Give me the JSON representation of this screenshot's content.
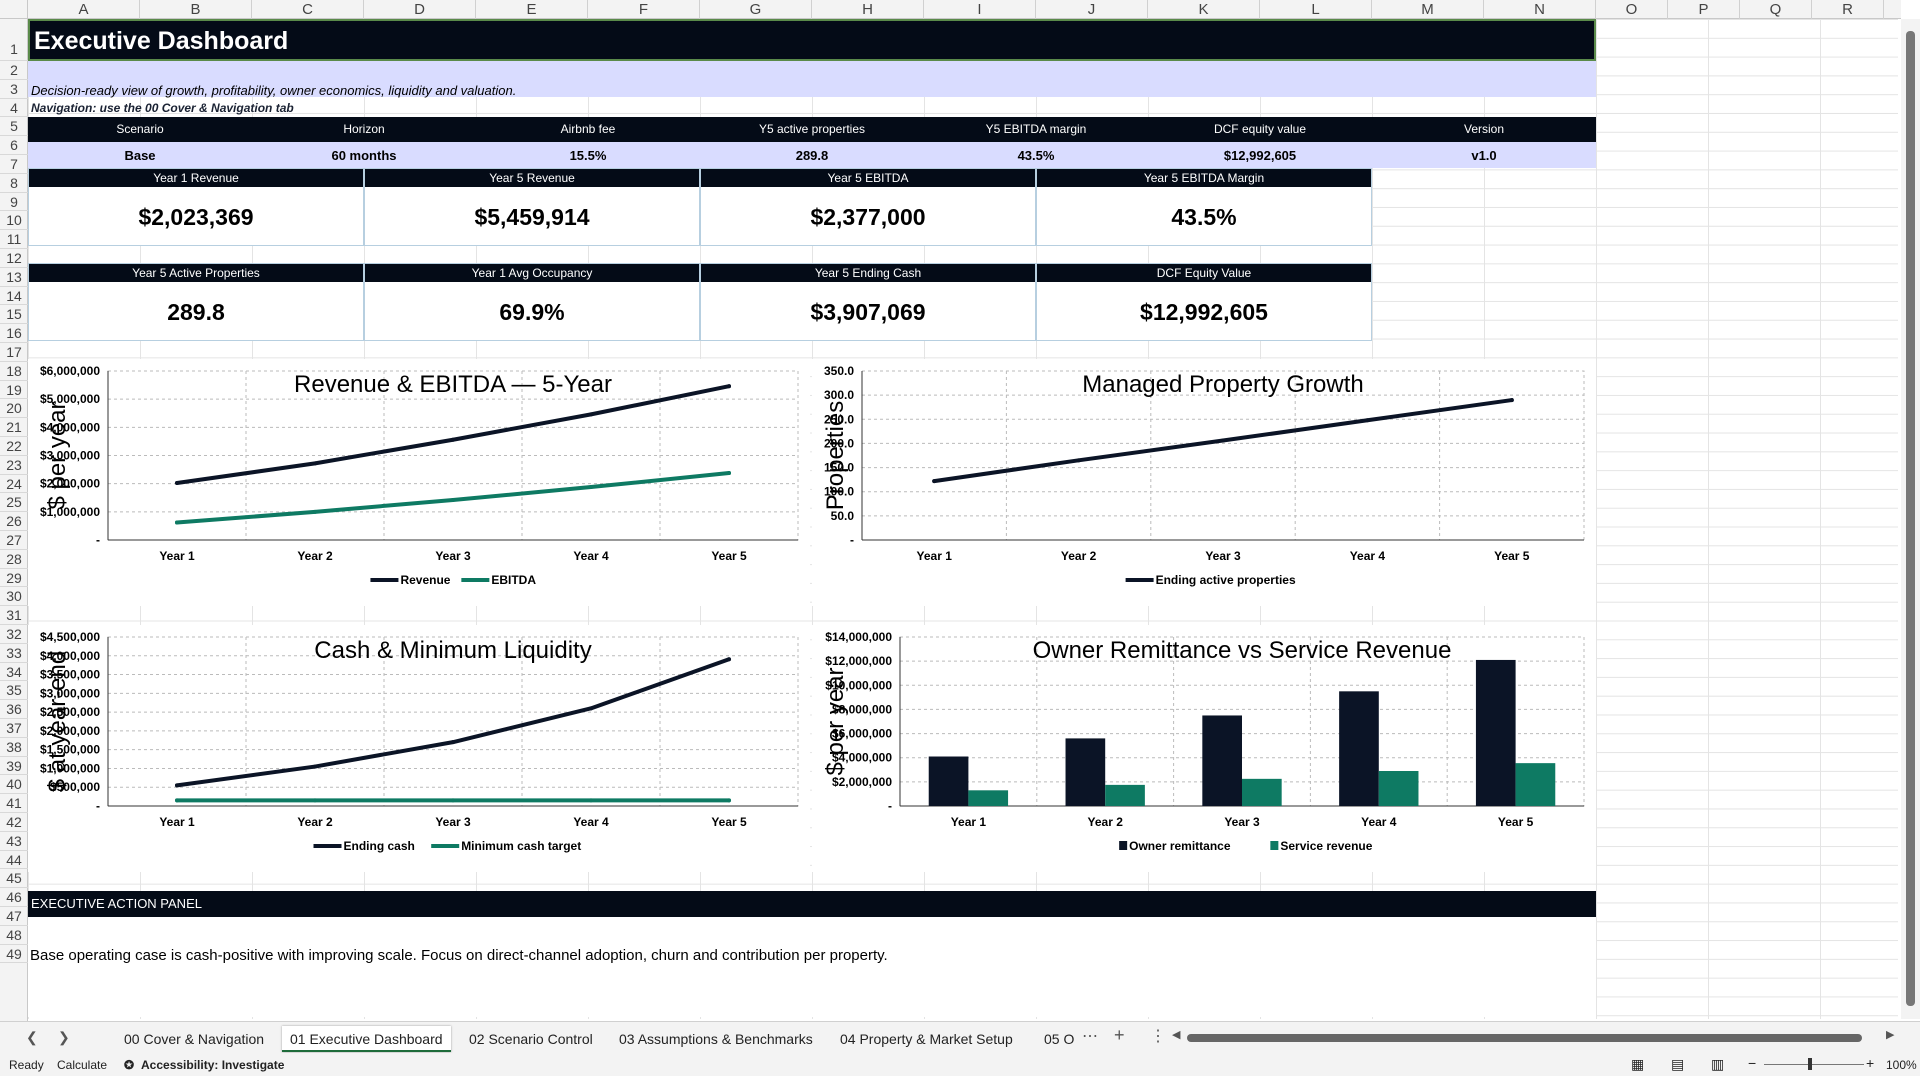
{
  "columns": [
    "A",
    "B",
    "C",
    "D",
    "E",
    "F",
    "G",
    "H",
    "I",
    "J",
    "K",
    "L",
    "M",
    "N",
    "O",
    "P",
    "Q",
    "R"
  ],
  "rows": [
    "1",
    "2",
    "3",
    "4",
    "5",
    "6",
    "7",
    "8",
    "9",
    "10",
    "11",
    "12",
    "13",
    "14",
    "15",
    "16",
    "17",
    "18",
    "19",
    "20",
    "21",
    "22",
    "23",
    "24",
    "25",
    "26",
    "27",
    "28",
    "29",
    "30",
    "31",
    "32",
    "33",
    "34",
    "35",
    "36",
    "37",
    "38",
    "39",
    "40",
    "41",
    "42",
    "43",
    "44",
    "45",
    "46",
    "47",
    "48",
    "49"
  ],
  "title": "Executive Dashboard",
  "subtitle": "Decision-ready view of growth, profitability, owner economics, liquidity and valuation.",
  "nav_note": "Navigation: use the 00 Cover & Navigation tab",
  "summary": {
    "headers": [
      "Scenario",
      "Horizon",
      "Airbnb fee",
      "Y5 active properties",
      "Y5 EBITDA margin",
      "DCF equity value",
      "Version"
    ],
    "values": [
      "Base",
      "60 months",
      "15.5%",
      "289.8",
      "43.5%",
      "$12,992,605",
      "v1.0"
    ]
  },
  "kpis": [
    {
      "label": "Year 1 Revenue",
      "value": "$2,023,369"
    },
    {
      "label": "Year 5 Revenue",
      "value": "$5,459,914"
    },
    {
      "label": "Year 5 EBITDA",
      "value": "$2,377,000"
    },
    {
      "label": "Year 5 EBITDA Margin",
      "value": "43.5%"
    },
    {
      "label": "Year 5 Active Properties",
      "value": "289.8"
    },
    {
      "label": "Year 1 Avg Occupancy",
      "value": "69.9%"
    },
    {
      "label": "Year 5 Ending Cash",
      "value": "$3,907,069"
    },
    {
      "label": "DCF Equity Value",
      "value": "$12,992,605"
    }
  ],
  "chart_data": [
    {
      "type": "line",
      "title": "Revenue & EBITDA — 5-Year",
      "ylabel": "$ per year",
      "categories": [
        "Year 1",
        "Year 2",
        "Year 3",
        "Year 4",
        "Year 5"
      ],
      "ylim": [
        0,
        6000000
      ],
      "yticks": [
        "-",
        "$1,000,000",
        "$2,000,000",
        "$3,000,000",
        "$4,000,000",
        "$5,000,000",
        "$6,000,000"
      ],
      "series": [
        {
          "name": "Revenue",
          "color": "#0b1426",
          "values": [
            2023369,
            2720000,
            3560000,
            4460000,
            5459914
          ]
        },
        {
          "name": "EBITDA",
          "color": "#0e7a63",
          "values": [
            620000,
            1000000,
            1420000,
            1880000,
            2377000
          ]
        }
      ],
      "legend": "bottom"
    },
    {
      "type": "line",
      "title": "Managed Property Growth",
      "ylabel": "Properties",
      "categories": [
        "Year 1",
        "Year 2",
        "Year 3",
        "Year 4",
        "Year 5"
      ],
      "ylim": [
        0,
        350
      ],
      "yticks": [
        "-",
        "50.0",
        "100.0",
        "150.0",
        "200.0",
        "250.0",
        "300.0",
        "350.0"
      ],
      "series": [
        {
          "name": "Ending active properties",
          "color": "#0b1426",
          "values": [
            122,
            165,
            206,
            248,
            289.8
          ]
        }
      ],
      "legend": "bottom"
    },
    {
      "type": "line",
      "title": "Cash & Minimum Liquidity",
      "ylabel": "$ at year-end",
      "categories": [
        "Year 1",
        "Year 2",
        "Year 3",
        "Year 4",
        "Year 5"
      ],
      "ylim": [
        0,
        4500000
      ],
      "yticks": [
        "-",
        "$500,000",
        "$1,000,000",
        "$1,500,000",
        "$2,000,000",
        "$2,500,000",
        "$3,000,000",
        "$3,500,000",
        "$4,000,000",
        "$4,500,000"
      ],
      "series": [
        {
          "name": "Ending cash",
          "color": "#0b1426",
          "values": [
            550000,
            1050000,
            1700000,
            2600000,
            3907069
          ]
        },
        {
          "name": "Minimum cash target",
          "color": "#0e7a63",
          "values": [
            150000,
            150000,
            150000,
            150000,
            150000
          ]
        }
      ],
      "legend": "bottom"
    },
    {
      "type": "bar",
      "title": "Owner Remittance vs Service Revenue",
      "ylabel": "$ per year",
      "categories": [
        "Year 1",
        "Year 2",
        "Year 3",
        "Year 4",
        "Year 5"
      ],
      "ylim": [
        0,
        14000000
      ],
      "yticks": [
        "-",
        "$2,000,000",
        "$4,000,000",
        "$6,000,000",
        "$8,000,000",
        "$10,000,000",
        "$12,000,000",
        "$14,000,000"
      ],
      "series": [
        {
          "name": "Owner remittance",
          "color": "#0b1426",
          "values": [
            4100000,
            5600000,
            7500000,
            9500000,
            12100000
          ]
        },
        {
          "name": "Service revenue",
          "color": "#0e7a63",
          "values": [
            1300000,
            1750000,
            2250000,
            2900000,
            3550000
          ]
        }
      ],
      "legend": "bottom"
    }
  ],
  "action_panel": {
    "header": "EXECUTIVE ACTION PANEL",
    "text": "Base operating case is cash-positive with improving scale. Focus on direct-channel adoption, churn and contribution per property."
  },
  "tabs": [
    "00 Cover & Navigation",
    "01 Executive Dashboard",
    "02 Scenario Control",
    "03 Assumptions & Benchmarks",
    "04 Property & Market Setup",
    "05 O"
  ],
  "active_tab": "01 Executive Dashboard",
  "status": {
    "ready": "Ready",
    "calculate": "Calculate",
    "accessibility": "Accessibility: Investigate",
    "zoom": "100%"
  }
}
